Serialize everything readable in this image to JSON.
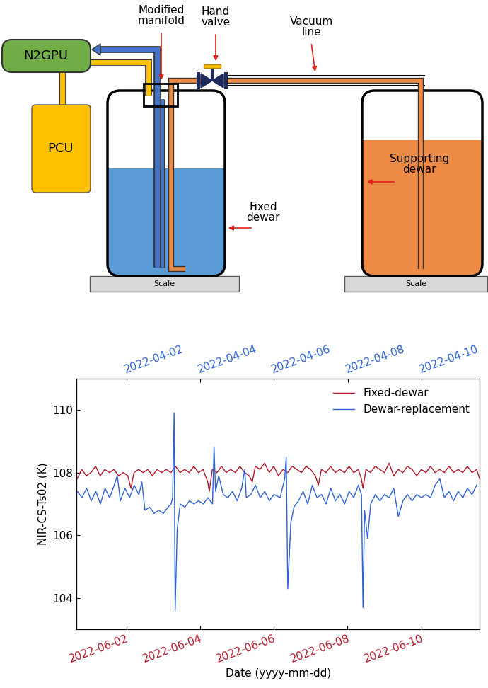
{
  "diagram": {
    "labels": {
      "n2gpu": "N2GPU",
      "pcu": "PCU",
      "manifold": "Modified\nmanifold",
      "valve": "Hand\nvalve",
      "vacuum_line": "Vacuum\nline",
      "supporting_dewar": "Supporting\ndewar",
      "fixed_dewar": "Fixed\ndewar",
      "scale_left": "Scale",
      "scale_right": "Scale"
    }
  },
  "chart_data": {
    "type": "line",
    "y_label": "NIR-CS-Ts02 (K)",
    "x_label": "Date (yyyy-mm-dd)",
    "ylim": [
      103,
      111
    ],
    "yticks": [
      104,
      106,
      108,
      110
    ],
    "xlim": [
      "2022-05-31 15:40",
      "2022-06-11 14:00"
    ],
    "xticks": [
      "2022-06-02",
      "2022-06-04",
      "2022-06-06",
      "2022-06-08",
      "2022-06-10"
    ],
    "x2lim": [
      "2022-03-31 15:30",
      "2022-04-11 14:00"
    ],
    "x2ticks": [
      "2022-04-02",
      "2022-04-04",
      "2022-04-06",
      "2022-04-08",
      "2022-04-10"
    ],
    "legend": "upper right",
    "series": [
      {
        "name": "Fixed-dewar",
        "color": "#b2182b",
        "axis": "x",
        "x": [
          "2022-05-31 16:00",
          "2022-05-31 19:00",
          "2022-05-31 22:00",
          "2022-06-01 01:00",
          "2022-06-01 04:00",
          "2022-06-01 07:00",
          "2022-06-01 10:00",
          "2022-06-01 13:00",
          "2022-06-01 16:00",
          "2022-06-01 19:00",
          "2022-06-01 22:00",
          "2022-06-02 01:00",
          "2022-06-02 03:00",
          "2022-06-02 05:00",
          "2022-06-02 08:00",
          "2022-06-02 11:00",
          "2022-06-02 14:00",
          "2022-06-02 17:00",
          "2022-06-02 20:00",
          "2022-06-02 23:00",
          "2022-06-03 02:00",
          "2022-06-03 05:00",
          "2022-06-03 08:00",
          "2022-06-03 11:00",
          "2022-06-03 14:00",
          "2022-06-03 17:00",
          "2022-06-03 20:00",
          "2022-06-03 23:00",
          "2022-06-04 02:00",
          "2022-06-04 05:00",
          "2022-06-04 06:00",
          "2022-06-04 08:00",
          "2022-06-04 11:00",
          "2022-06-04 14:00",
          "2022-06-04 17:00",
          "2022-06-04 20:00",
          "2022-06-04 23:00",
          "2022-06-05 02:00",
          "2022-06-05 05:00",
          "2022-06-05 08:00",
          "2022-06-05 10:00",
          "2022-06-05 12:00",
          "2022-06-05 15:00",
          "2022-06-05 18:00",
          "2022-06-05 21:00",
          "2022-06-06 00:00",
          "2022-06-06 03:00",
          "2022-06-06 06:00",
          "2022-06-06 09:00",
          "2022-06-06 12:00",
          "2022-06-06 15:00",
          "2022-06-06 18:00",
          "2022-06-06 21:00",
          "2022-06-07 00:00",
          "2022-06-07 03:00",
          "2022-06-07 05:00",
          "2022-06-07 07:00",
          "2022-06-07 10:00",
          "2022-06-07 13:00",
          "2022-06-07 16:00",
          "2022-06-07 19:00",
          "2022-06-07 22:00",
          "2022-06-08 01:00",
          "2022-06-08 04:00",
          "2022-06-08 07:00",
          "2022-06-08 09:00",
          "2022-06-08 10:00",
          "2022-06-08 12:00",
          "2022-06-08 15:00",
          "2022-06-08 18:00",
          "2022-06-08 21:00",
          "2022-06-09 00:00",
          "2022-06-09 03:00",
          "2022-06-09 06:00",
          "2022-06-09 09:00",
          "2022-06-09 12:00",
          "2022-06-09 15:00",
          "2022-06-09 18:00",
          "2022-06-09 21:00",
          "2022-06-10 00:00",
          "2022-06-10 03:00",
          "2022-06-10 06:00",
          "2022-06-10 09:00",
          "2022-06-10 12:00",
          "2022-06-10 15:00",
          "2022-06-10 18:00",
          "2022-06-10 21:00",
          "2022-06-11 00:00",
          "2022-06-11 03:00",
          "2022-06-11 06:00",
          "2022-06-11 09:00",
          "2022-06-11 12:00",
          "2022-06-11 14:00"
        ],
        "values": [
          107.8,
          108.1,
          107.9,
          108.0,
          108.2,
          107.9,
          108.1,
          108.0,
          108.1,
          107.9,
          108.0,
          107.9,
          107.5,
          108.0,
          108.1,
          108.0,
          108.1,
          107.9,
          108.1,
          108.0,
          108.1,
          108.0,
          108.2,
          108.0,
          108.1,
          108.0,
          108.2,
          108.0,
          108.1,
          107.7,
          107.4,
          108.1,
          108.0,
          108.2,
          108.0,
          108.1,
          108.0,
          108.2,
          108.0,
          107.9,
          107.7,
          108.2,
          108.1,
          108.3,
          108.0,
          108.2,
          107.9,
          108.1,
          108.0,
          108.2,
          108.1,
          108.0,
          108.2,
          108.1,
          107.9,
          107.6,
          108.1,
          108.0,
          108.2,
          108.0,
          108.1,
          108.0,
          108.2,
          108.0,
          108.1,
          107.8,
          107.5,
          108.1,
          108.0,
          108.2,
          108.1,
          108.0,
          108.3,
          107.9,
          108.1,
          108.0,
          108.2,
          108.1,
          107.9,
          108.1,
          108.0,
          108.2,
          108.0,
          108.1,
          108.0,
          108.2,
          108.0,
          108.1,
          108.0,
          108.2,
          108.0,
          108.1,
          107.8
        ]
      },
      {
        "name": "Dewar-replacement",
        "color": "#2f62d6",
        "axis": "x2",
        "x": [
          "2022-03-31 16:00",
          "2022-03-31 19:00",
          "2022-03-31 22:00",
          "2022-04-01 01:00",
          "2022-04-01 04:00",
          "2022-04-01 07:00",
          "2022-04-01 10:00",
          "2022-04-01 13:00",
          "2022-04-01 16:00",
          "2022-04-01 18:00",
          "2022-04-01 20:00",
          "2022-04-01 23:00",
          "2022-04-02 02:00",
          "2022-04-02 05:00",
          "2022-04-02 08:00",
          "2022-04-02 10:00",
          "2022-04-02 12:00",
          "2022-04-02 15:00",
          "2022-04-02 18:00",
          "2022-04-02 21:00",
          "2022-04-03 00:00",
          "2022-04-03 03:00",
          "2022-04-03 05:00",
          "2022-04-03 06:00",
          "2022-04-03 07:00",
          "2022-04-03 07:40",
          "2022-04-03 09:00",
          "2022-04-03 11:00",
          "2022-04-03 14:00",
          "2022-04-03 17:00",
          "2022-04-03 20:00",
          "2022-04-03 23:00",
          "2022-04-04 02:00",
          "2022-04-04 05:00",
          "2022-04-04 08:00",
          "2022-04-04 09:00",
          "2022-04-04 10:00",
          "2022-04-04 12:00",
          "2022-04-04 15:00",
          "2022-04-04 18:00",
          "2022-04-04 21:00",
          "2022-04-05 00:00",
          "2022-04-05 03:00",
          "2022-04-05 05:00",
          "2022-04-05 06:00",
          "2022-04-05 09:00",
          "2022-04-05 12:00",
          "2022-04-05 15:00",
          "2022-04-05 18:00",
          "2022-04-05 21:00",
          "2022-04-06 00:00",
          "2022-04-06 04:00",
          "2022-04-06 07:00",
          "2022-04-06 08:00",
          "2022-04-06 09:00",
          "2022-04-06 11:00",
          "2022-04-06 13:00",
          "2022-04-06 16:00",
          "2022-04-06 19:00",
          "2022-04-06 22:00",
          "2022-04-07 01:00",
          "2022-04-07 04:00",
          "2022-04-07 07:00",
          "2022-04-07 10:00",
          "2022-04-07 13:00",
          "2022-04-07 16:00",
          "2022-04-07 19:00",
          "2022-04-07 22:00",
          "2022-04-08 01:00",
          "2022-04-08 04:00",
          "2022-04-08 07:00",
          "2022-04-08 09:00",
          "2022-04-08 10:00",
          "2022-04-08 11:00",
          "2022-04-08 13:00",
          "2022-04-08 15:00",
          "2022-04-08 18:00",
          "2022-04-08 21:00",
          "2022-04-09 00:00",
          "2022-04-09 03:00",
          "2022-04-09 06:00",
          "2022-04-09 09:00",
          "2022-04-09 12:00",
          "2022-04-09 15:00",
          "2022-04-09 18:00",
          "2022-04-09 21:00",
          "2022-04-10 00:00",
          "2022-04-10 03:00",
          "2022-04-10 06:00",
          "2022-04-10 09:00",
          "2022-04-10 12:00",
          "2022-04-10 15:00",
          "2022-04-10 18:00",
          "2022-04-10 21:00",
          "2022-04-11 00:00",
          "2022-04-11 03:00",
          "2022-04-11 06:00",
          "2022-04-11 09:00",
          "2022-04-11 12:00"
        ],
        "values": [
          107.4,
          107.2,
          107.5,
          107.1,
          107.4,
          107.0,
          107.5,
          107.2,
          107.6,
          107.9,
          107.1,
          107.5,
          107.2,
          107.6,
          107.3,
          107.7,
          106.8,
          106.9,
          106.7,
          106.8,
          106.7,
          106.9,
          107.0,
          107.2,
          109.9,
          103.6,
          106.2,
          107.0,
          106.9,
          107.1,
          107.0,
          107.1,
          107.0,
          107.2,
          107.0,
          108.8,
          107.4,
          107.9,
          107.3,
          107.2,
          107.4,
          107.1,
          107.5,
          108.1,
          107.2,
          107.3,
          107.6,
          107.2,
          107.4,
          107.1,
          107.3,
          107.2,
          107.8,
          108.5,
          104.3,
          106.4,
          106.9,
          107.1,
          107.4,
          107.0,
          107.6,
          107.2,
          107.3,
          107.0,
          107.5,
          107.1,
          107.3,
          107.0,
          107.4,
          107.2,
          107.6,
          107.3,
          103.7,
          106.8,
          105.9,
          107.0,
          107.3,
          107.1,
          107.3,
          107.2,
          107.5,
          106.6,
          107.1,
          107.3,
          107.1,
          107.3,
          107.2,
          107.3,
          107.2,
          107.6,
          107.8,
          107.2,
          107.4,
          107.1,
          107.4,
          107.2,
          107.5,
          107.3,
          107.6
        ]
      }
    ]
  }
}
